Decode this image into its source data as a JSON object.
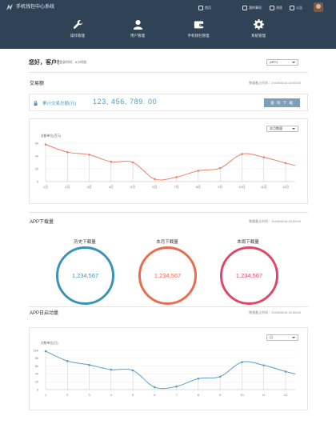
{
  "app": {
    "title": "手机钱包中心系统"
  },
  "topbar": [
    {
      "label": "首页"
    },
    {
      "label": "我的事项"
    },
    {
      "label": "消息"
    },
    {
      "label": "公告"
    }
  ],
  "nav": [
    {
      "label": "操作管理",
      "icon": "wrench-icon"
    },
    {
      "label": "用户管理",
      "icon": "user-icon"
    },
    {
      "label": "手机钱包管理",
      "icon": "wallet-icon"
    },
    {
      "label": "系统管理",
      "icon": "gear-icon"
    }
  ],
  "greeting": {
    "text": "您好，客户！",
    "last_login": "上次登录时间：6小时前"
  },
  "app_select": {
    "value": "APP1"
  },
  "trade": {
    "title": "交易额",
    "time": "数据截止时间：2015/06/16 16:00:00",
    "total_label": "累计交易总额(元)",
    "total_value": "123, 456, 789. 00",
    "query_button": "查 询 下 载"
  },
  "trade_select": {
    "value": "本月数量"
  },
  "download": {
    "title": "APP下载量",
    "time": "数据截止时间：2015/06/16 16:00:00",
    "rings": [
      {
        "label": "历史下载量",
        "value": "1,234,567",
        "color": "#3a93b7"
      },
      {
        "label": "本月下载量",
        "value": "1,234,567",
        "color": "#ea6c4f"
      },
      {
        "label": "本周下载量",
        "value": "1,234,567",
        "color": "#dd4869"
      }
    ]
  },
  "startup": {
    "title": "APP日启动量",
    "time": "数据截止时间：2015/06/16 16:00:00"
  },
  "startup_select": {
    "value": "日"
  },
  "colors": {
    "header": "#2f4256",
    "accent": "#4a9bc6",
    "trade_line": "#e8846a",
    "startup_line": "#5b9ec8"
  },
  "chart_data": [
    {
      "type": "area",
      "ylabel": "金额单位(百万)",
      "categories": [
        "1月",
        "2月",
        "3月",
        "4月",
        "5月",
        "6月",
        "7月",
        "8月",
        "9月",
        "10月",
        "11月",
        "12月"
      ],
      "values": [
        58,
        46,
        42,
        31,
        30,
        4,
        7,
        17,
        21,
        43,
        38,
        29
      ],
      "yticks": [
        0,
        20,
        40,
        60
      ],
      "ylim": [
        0,
        60
      ],
      "grid": true
    },
    {
      "type": "area",
      "ylabel": "次数单位(万)",
      "categories": [
        "1",
        "2",
        "3",
        "4",
        "5",
        "6",
        "7",
        "8",
        "9",
        "10",
        "11",
        "12"
      ],
      "values": [
        98,
        73,
        63,
        51,
        49,
        6,
        8,
        28,
        33,
        70,
        62,
        46
      ],
      "yticks": [
        0,
        20,
        40,
        60,
        80,
        100
      ],
      "ylim": [
        0,
        100
      ],
      "grid": true
    }
  ]
}
